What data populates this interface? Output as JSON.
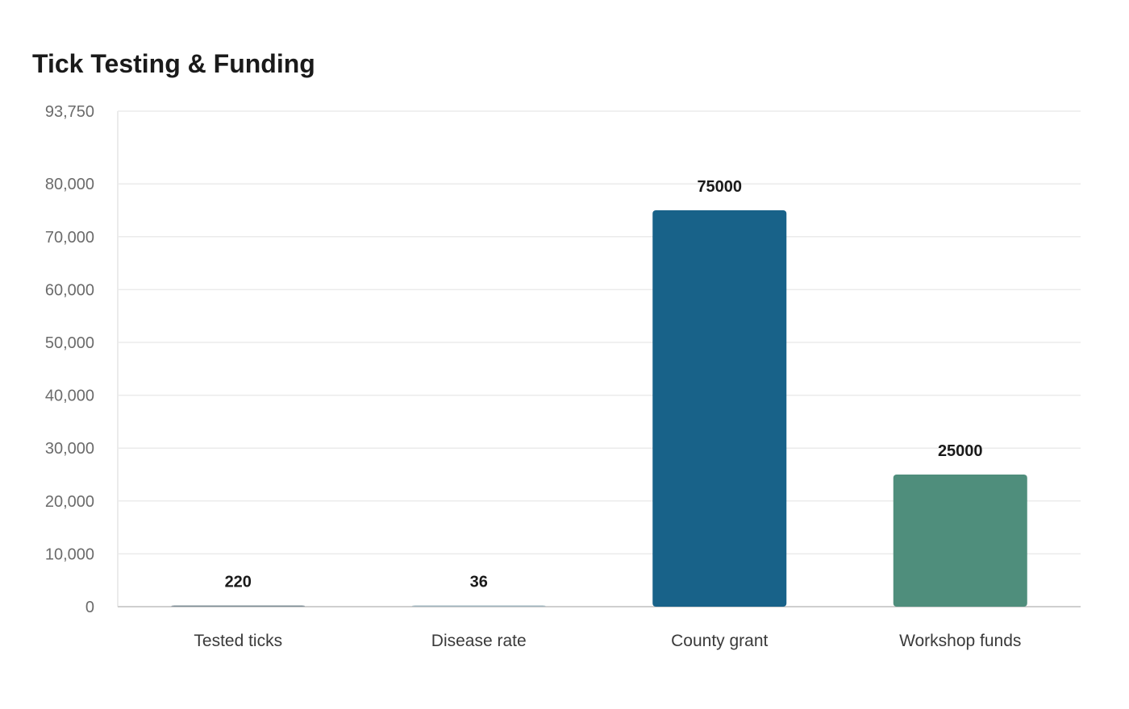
{
  "chart_data": {
    "type": "bar",
    "title": "Tick Testing & Funding",
    "xlabel": "",
    "ylabel": "",
    "categories": [
      "Tested ticks",
      "Disease rate",
      "County grant",
      "Workshop funds"
    ],
    "values": [
      220,
      36,
      75000,
      25000
    ],
    "data_labels": [
      "220",
      "36",
      "75000",
      "25000"
    ],
    "bar_colors": [
      "#7d8d96",
      "#9fb4bd",
      "#186289",
      "#4f8e7c"
    ],
    "ylim": [
      0,
      93750
    ],
    "yticks": [
      0,
      10000,
      20000,
      30000,
      40000,
      50000,
      60000,
      70000,
      80000,
      93750
    ],
    "ytick_labels": [
      "0",
      "10,000",
      "20,000",
      "30,000",
      "40,000",
      "50,000",
      "60,000",
      "70,000",
      "80,000",
      "93,750"
    ],
    "grid": true,
    "legend": "none",
    "colors": {
      "grid": "#ebebeb",
      "axis": "#cfcfcf"
    }
  }
}
